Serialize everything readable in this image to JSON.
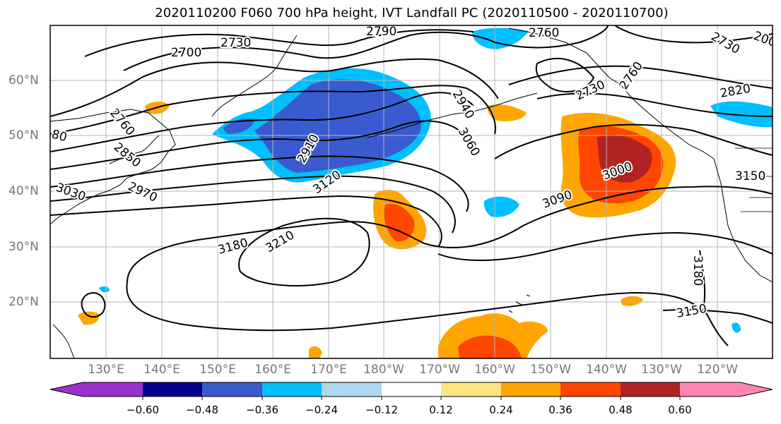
{
  "title": "2020110200 F060 700 hPa height, IVT Landfall PC (2020110500 - 2020110700)",
  "map": {
    "lon_labels": [
      "130°E",
      "140°E",
      "150°E",
      "160°E",
      "170°E",
      "180°W",
      "170°W",
      "160°W",
      "150°W",
      "140°W",
      "130°W",
      "120°W"
    ],
    "lat_labels": [
      "60°N",
      "50°N",
      "40°N",
      "30°N",
      "20°N"
    ],
    "contour_labels": [
      "2790",
      "2760",
      "2730",
      "2700",
      "2730",
      "2760",
      "2850",
      "2910",
      "3120",
      "2940",
      "3060",
      "2730",
      "2760",
      "2820",
      "3000",
      "3090",
      "3150",
      "3180",
      "3210",
      "3180",
      "3150",
      "2970",
      "3030",
      "80",
      "200"
    ]
  },
  "colorbar": {
    "ticks": [
      "−0.60",
      "−0.48",
      "−0.36",
      "−0.24",
      "−0.12",
      "0.12",
      "0.24",
      "0.36",
      "0.48",
      "0.60"
    ],
    "colors": [
      "#9932cc",
      "#00008b",
      "#3a5bcf",
      "#00bfff",
      "#add8f0",
      "#ffffff",
      "#ffe57f",
      "#ffa500",
      "#ff4500",
      "#b22222",
      "#ff85b4"
    ]
  }
}
